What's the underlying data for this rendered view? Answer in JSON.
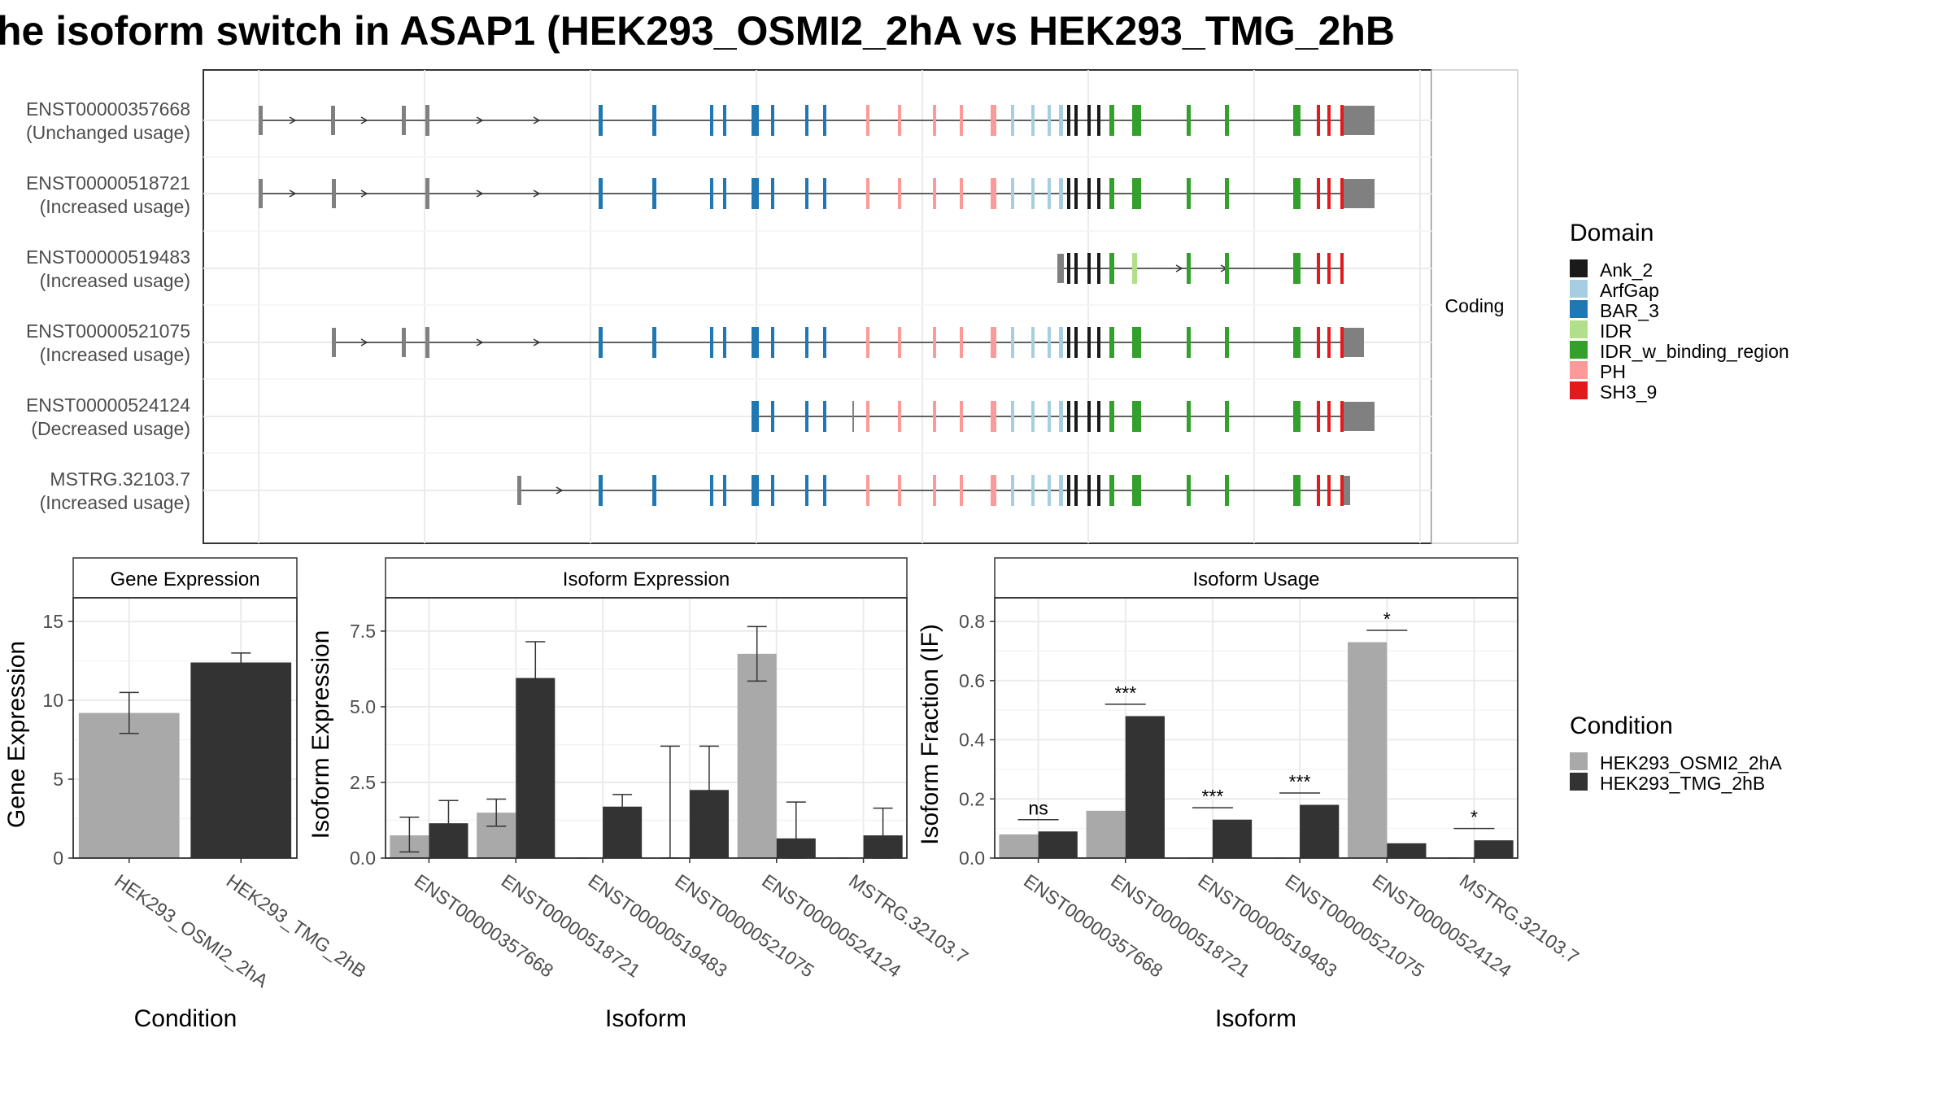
{
  "title": "he isoform switch in ASAP1 (HEK293_OSMI2_2hA vs HEK293_TMG_2hB",
  "structure": {
    "facet_label": "Coding",
    "isoforms": [
      {
        "id": "ENST00000357668",
        "usage": "(Unchanged usage)"
      },
      {
        "id": "ENST00000518721",
        "usage": "(Increased usage)"
      },
      {
        "id": "ENST00000519483",
        "usage": "(Increased usage)"
      },
      {
        "id": "ENST00000521075",
        "usage": "(Increased usage)"
      },
      {
        "id": "ENST00000524124",
        "usage": "(Decreased usage)"
      },
      {
        "id": "MSTRG.32103.7",
        "usage": "(Increased usage)"
      }
    ]
  },
  "legend_domain": {
    "title": "Domain",
    "items": [
      {
        "label": "Ank_2",
        "color": "#1a1a1a"
      },
      {
        "label": "ArfGap",
        "color": "#a6cee3"
      },
      {
        "label": "BAR_3",
        "color": "#1f78b4"
      },
      {
        "label": "IDR",
        "color": "#b2df8a"
      },
      {
        "label": "IDR_w_binding_region",
        "color": "#33a02c"
      },
      {
        "label": "PH",
        "color": "#fb9a99"
      },
      {
        "label": "SH3_9",
        "color": "#e31a1c"
      }
    ]
  },
  "legend_condition": {
    "title": "Condition",
    "items": [
      {
        "label": "HEK293_OSMI2_2hA",
        "color": "#a9a9a9"
      },
      {
        "label": "HEK293_TMG_2hB",
        "color": "#333333"
      }
    ]
  },
  "chart_data": [
    {
      "type": "bar",
      "title": "Gene Expression",
      "xlabel": "Condition",
      "ylabel": "Gene Expression",
      "ylim": [
        0,
        16.5
      ],
      "yticks": [
        "0",
        "5",
        "10",
        "15"
      ],
      "ytick_values": [
        0,
        5,
        10,
        15
      ],
      "categories": [
        "HEK293_OSMI2_2hA",
        "HEK293_TMG_2hB"
      ],
      "values": [
        9.2,
        12.4
      ],
      "err_low": [
        7.9,
        11.8
      ],
      "err_high": [
        10.5,
        13.0
      ]
    },
    {
      "type": "bar",
      "title": "Isoform Expression",
      "xlabel": "Isoform",
      "ylabel": "Isoform Expression",
      "ylim": [
        0,
        8.6
      ],
      "yticks": [
        "0.0",
        "2.5",
        "5.0",
        "7.5"
      ],
      "ytick_values": [
        0,
        2.5,
        5,
        7.5
      ],
      "categories": [
        "ENST00000357668",
        "ENST00000518721",
        "ENST00000519483",
        "ENST00000521075",
        "ENST00000524124",
        "MSTRG.32103.7"
      ],
      "series": [
        {
          "name": "HEK293_OSMI2_2hA",
          "values": [
            0.75,
            1.5,
            0,
            0,
            6.75,
            0
          ],
          "err_low": [
            0.2,
            1.05,
            0,
            0,
            5.85,
            0
          ],
          "err_high": [
            1.35,
            1.95,
            0,
            3.7,
            7.65,
            0
          ]
        },
        {
          "name": "HEK293_TMG_2hB",
          "values": [
            1.15,
            5.95,
            1.7,
            2.25,
            0.65,
            0.75
          ],
          "err_low": [
            0.45,
            4.8,
            1.35,
            0.8,
            0,
            0
          ],
          "err_high": [
            1.9,
            7.15,
            2.1,
            3.7,
            1.85,
            1.65
          ]
        }
      ]
    },
    {
      "type": "bar",
      "title": "Isoform Usage",
      "xlabel": "Isoform",
      "ylabel": "Isoform Fraction (IF)",
      "ylim": [
        0,
        0.88
      ],
      "yticks": [
        "0.0",
        "0.2",
        "0.4",
        "0.6",
        "0.8"
      ],
      "ytick_values": [
        0,
        0.2,
        0.4,
        0.6,
        0.8
      ],
      "categories": [
        "ENST00000357668",
        "ENST00000518721",
        "ENST00000519483",
        "ENST00000521075",
        "ENST00000524124",
        "MSTRG.32103.7"
      ],
      "series": [
        {
          "name": "HEK293_OSMI2_2hA",
          "values": [
            0.08,
            0.16,
            0.0,
            0.0,
            0.73,
            0.0
          ]
        },
        {
          "name": "HEK293_TMG_2hB",
          "values": [
            0.09,
            0.48,
            0.13,
            0.18,
            0.05,
            0.06
          ]
        }
      ],
      "significance": [
        "ns",
        "***",
        "***",
        "***",
        "*",
        "*"
      ],
      "sig_y": [
        0.13,
        0.52,
        0.17,
        0.22,
        0.77,
        0.1
      ]
    }
  ]
}
